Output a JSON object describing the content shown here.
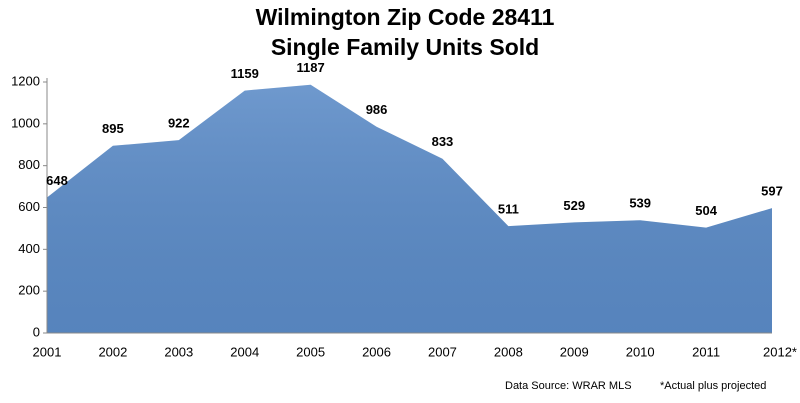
{
  "chart_data": {
    "type": "area",
    "title": "Wilmington Zip Code 28411",
    "subtitle": "Single Family Units Sold",
    "categories": [
      "2001",
      "2002",
      "2003",
      "2004",
      "2005",
      "2006",
      "2007",
      "2008",
      "2009",
      "2010",
      "2011",
      "2012*"
    ],
    "values": [
      648,
      895,
      922,
      1159,
      1187,
      986,
      833,
      511,
      529,
      539,
      504,
      597
    ],
    "color": "#5b8bc7",
    "ylim": [
      0,
      1200
    ],
    "yticks": [
      0,
      200,
      400,
      600,
      800,
      1000,
      1200
    ],
    "grid": false,
    "annotations": [
      "Data Source: WRAR MLS",
      "*Actual plus projected"
    ]
  }
}
